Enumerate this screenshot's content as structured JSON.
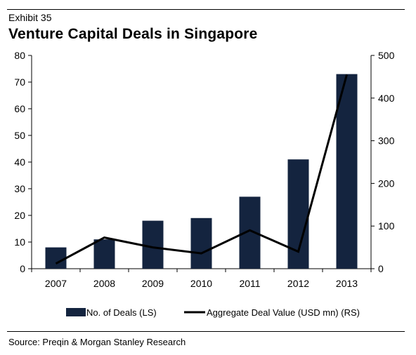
{
  "header": {
    "exhibit": "Exhibit 35",
    "title": "Venture Capital Deals in Singapore"
  },
  "footer": {
    "source": "Source: Preqin & Morgan Stanley Research"
  },
  "colors": {
    "bar": "#14243f",
    "line": "#000000",
    "rule": "#000000"
  },
  "chart_data": {
    "type": "bar",
    "title": "Venture Capital Deals in Singapore",
    "categories": [
      "2007",
      "2008",
      "2009",
      "2010",
      "2011",
      "2012",
      "2013"
    ],
    "series": [
      {
        "name": "No. of Deals (LS)",
        "type": "bar",
        "axis": "left",
        "values": [
          8,
          11,
          18,
          19,
          27,
          41,
          73
        ]
      },
      {
        "name": "Aggregate Deal Value (USD mn) (RS)",
        "type": "line",
        "axis": "right",
        "values": [
          12,
          73,
          50,
          36,
          90,
          40,
          455
        ]
      }
    ],
    "y_left": {
      "min": 0,
      "max": 80,
      "step": 10,
      "ticks": [
        "0",
        "10",
        "20",
        "30",
        "40",
        "50",
        "60",
        "70",
        "80"
      ]
    },
    "y_right": {
      "min": 0,
      "max": 500,
      "step": 100,
      "ticks": [
        "0",
        "100",
        "200",
        "300",
        "400",
        "500"
      ]
    },
    "grid": false,
    "legend_position": "bottom"
  }
}
